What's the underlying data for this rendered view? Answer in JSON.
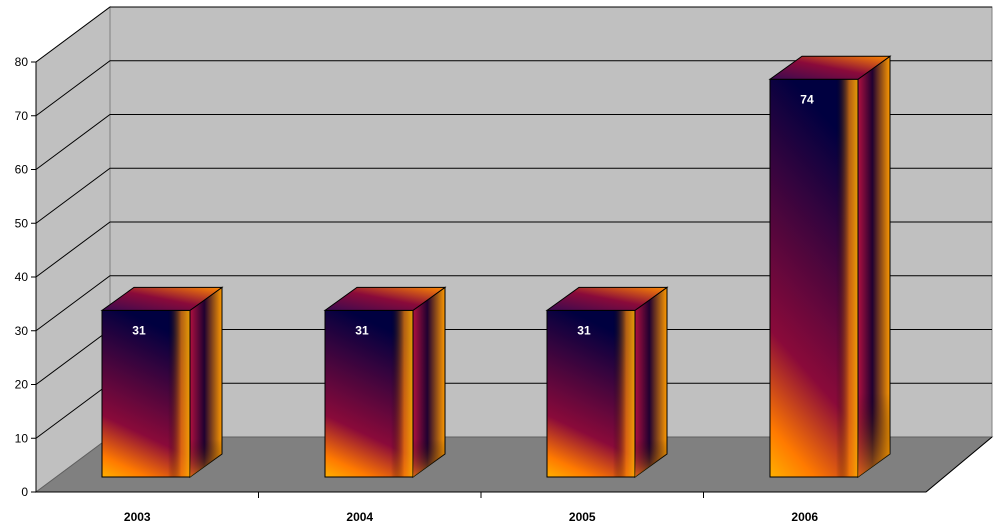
{
  "chart_data": {
    "type": "bar",
    "style": "3d-column",
    "categories": [
      "2003",
      "2004",
      "2005",
      "2006"
    ],
    "values": [
      31,
      31,
      31,
      74
    ],
    "data_labels": [
      "31",
      "31",
      "31",
      "74"
    ],
    "ylim": [
      0,
      80
    ],
    "yticks": [
      0,
      10,
      20,
      30,
      40,
      50,
      60,
      70,
      80
    ],
    "ytick_labels": [
      "0",
      "10",
      "20",
      "30",
      "40",
      "50",
      "60",
      "70",
      "80"
    ],
    "grid": true,
    "legend": "none",
    "colors": {
      "back_wall": "#c0c0c0",
      "floor": "#808080",
      "gridline": "#000000",
      "bar_gradient": [
        "#ffb000",
        "#ff7a00",
        "#8a0a3a",
        "#000040"
      ]
    }
  }
}
